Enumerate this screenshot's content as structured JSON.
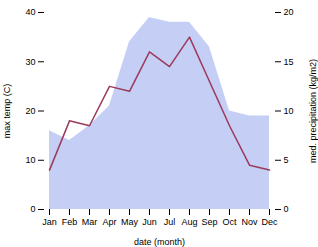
{
  "chart_data": {
    "type": "line",
    "xlabel": "date (month)",
    "ylabel": "max temp (C)",
    "y2label": "med. precipitation (kg/m2)",
    "categories": [
      "Jan",
      "Feb",
      "Mar",
      "Apr",
      "May",
      "Jun",
      "Jul",
      "Aug",
      "Sep",
      "Oct",
      "Nov",
      "Dec"
    ],
    "series": [
      {
        "type": "area",
        "axis": "y2",
        "color": "#c5cef5",
        "values": [
          8,
          7,
          8.5,
          10.5,
          17,
          19.5,
          19,
          19,
          16.5,
          10,
          9.5,
          9.5
        ]
      },
      {
        "type": "line",
        "color": "#9b3a5a",
        "values": [
          8,
          18,
          17,
          25,
          24,
          32,
          29,
          35,
          26,
          17,
          9,
          8
        ]
      }
    ],
    "ylim": [
      0,
      40
    ],
    "yticks": [
      0,
      10,
      20,
      30,
      40
    ],
    "y2lim": [
      0,
      20
    ],
    "y2ticks": [
      0,
      5,
      10,
      15,
      20
    ],
    "grid": false
  }
}
